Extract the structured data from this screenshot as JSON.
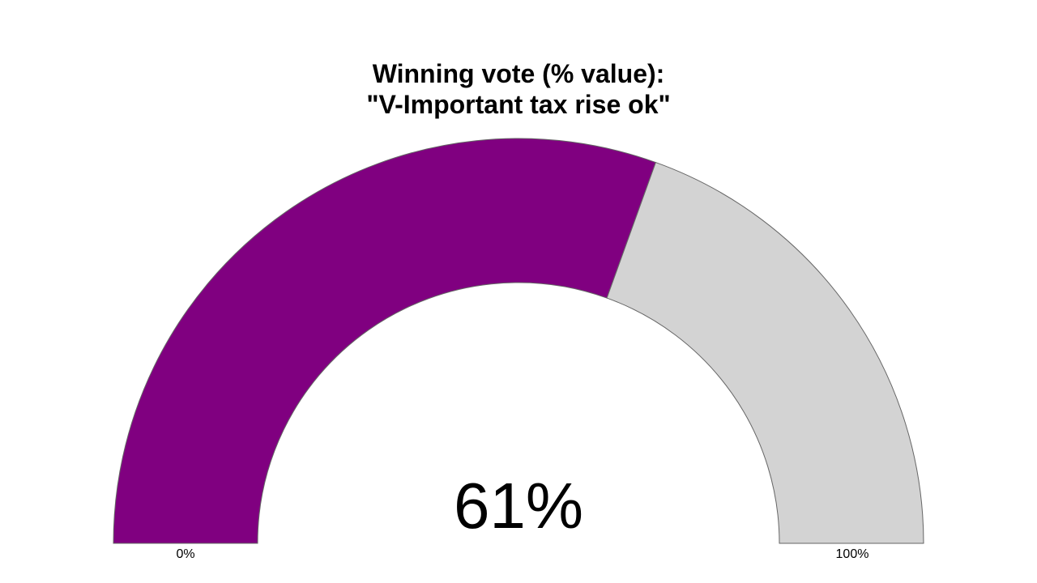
{
  "chart_data": {
    "type": "gauge",
    "title_lines": [
      "Winning vote (% value):",
      "\"V-Important tax rise ok\""
    ],
    "value": 61,
    "min": 0,
    "max": 100,
    "value_label": "61%",
    "min_label": "0%",
    "max_label": "100%",
    "colors": {
      "filled": "#800080",
      "remaining": "#d3d3d3",
      "outline": "#666666"
    }
  }
}
